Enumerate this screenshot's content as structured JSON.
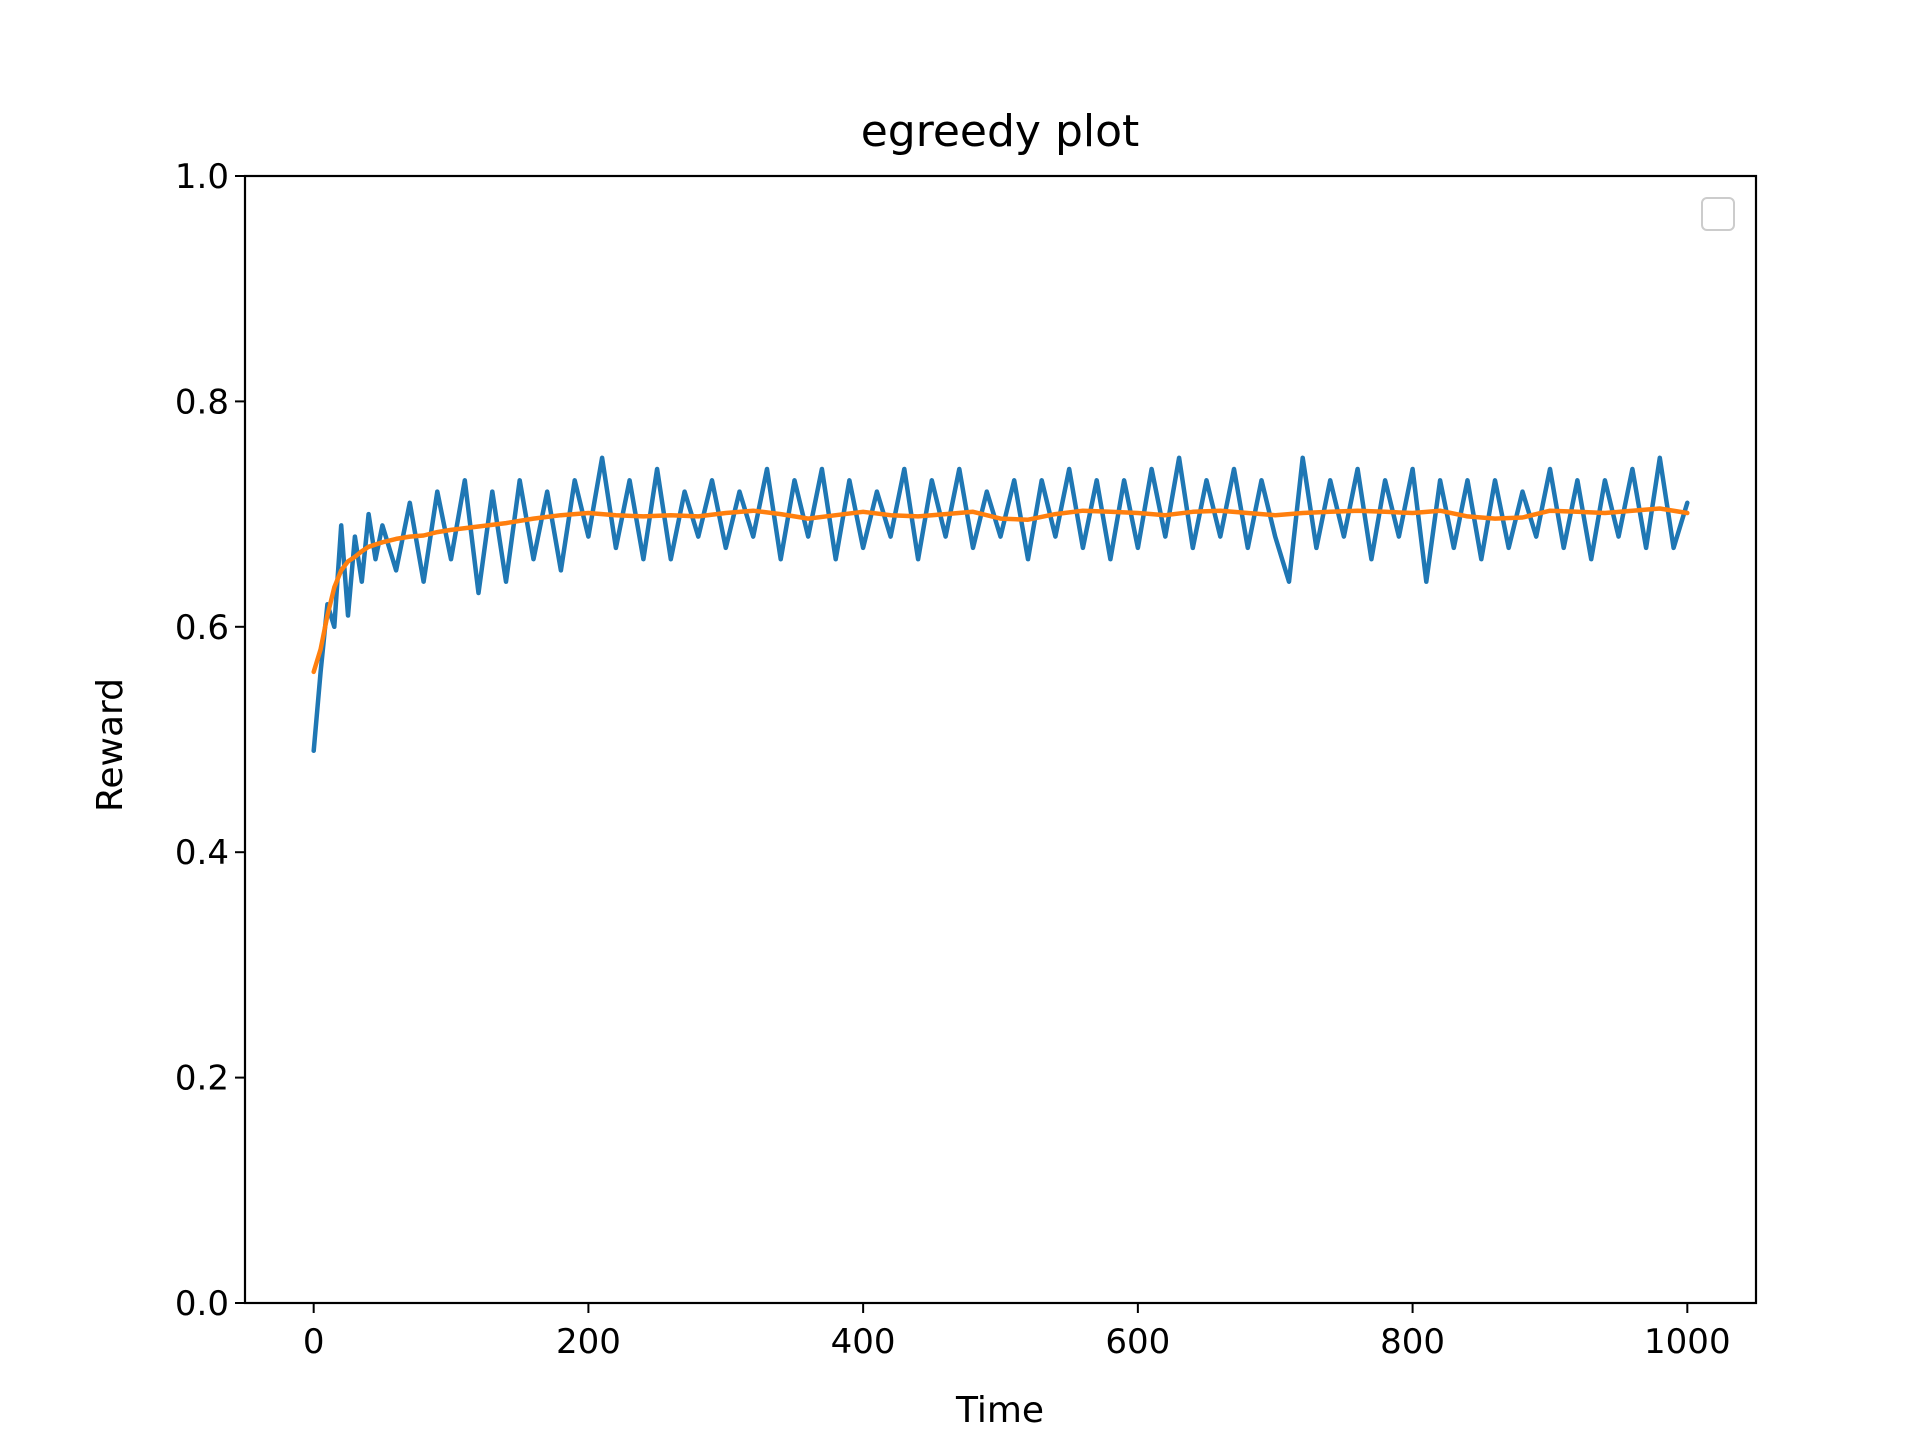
{
  "chart_data": {
    "type": "line",
    "title": "egreedy plot",
    "xlabel": "Time",
    "ylabel": "Reward",
    "xlim": [
      -50,
      1050
    ],
    "ylim": [
      0.0,
      1.0
    ],
    "xticks": [
      0,
      200,
      400,
      600,
      800,
      1000
    ],
    "xtick_labels": [
      "0",
      "200",
      "400",
      "600",
      "800",
      "1000"
    ],
    "yticks": [
      0.0,
      0.2,
      0.4,
      0.6,
      0.8,
      1.0
    ],
    "ytick_labels": [
      "0.0",
      "0.2",
      "0.4",
      "0.6",
      "0.8",
      "1.0"
    ],
    "grid": false,
    "legend": {
      "placement": "top-right",
      "entries": []
    },
    "colors": {
      "series_1": "#1f77b4",
      "series_2": "#ff7f0e"
    },
    "series": [
      {
        "color": "#1f77b4",
        "x": [
          0,
          5,
          10,
          15,
          20,
          25,
          30,
          35,
          40,
          45,
          50,
          60,
          70,
          80,
          90,
          100,
          110,
          120,
          130,
          140,
          150,
          160,
          170,
          180,
          190,
          200,
          210,
          220,
          230,
          240,
          250,
          260,
          270,
          280,
          290,
          300,
          310,
          320,
          330,
          340,
          350,
          360,
          370,
          380,
          390,
          400,
          410,
          420,
          430,
          440,
          450,
          460,
          470,
          480,
          490,
          500,
          510,
          520,
          530,
          540,
          550,
          560,
          570,
          580,
          590,
          600,
          610,
          620,
          630,
          640,
          650,
          660,
          670,
          680,
          690,
          700,
          710,
          720,
          730,
          740,
          750,
          760,
          770,
          780,
          790,
          800,
          810,
          820,
          830,
          840,
          850,
          860,
          870,
          880,
          890,
          900,
          910,
          920,
          930,
          940,
          950,
          960,
          970,
          980,
          990,
          1000
        ],
        "y": [
          0.49,
          0.56,
          0.62,
          0.6,
          0.69,
          0.61,
          0.68,
          0.64,
          0.7,
          0.66,
          0.69,
          0.65,
          0.71,
          0.64,
          0.72,
          0.66,
          0.73,
          0.63,
          0.72,
          0.64,
          0.73,
          0.66,
          0.72,
          0.65,
          0.73,
          0.68,
          0.75,
          0.67,
          0.73,
          0.66,
          0.74,
          0.66,
          0.72,
          0.68,
          0.73,
          0.67,
          0.72,
          0.68,
          0.74,
          0.66,
          0.73,
          0.68,
          0.74,
          0.66,
          0.73,
          0.67,
          0.72,
          0.68,
          0.74,
          0.66,
          0.73,
          0.68,
          0.74,
          0.67,
          0.72,
          0.68,
          0.73,
          0.66,
          0.73,
          0.68,
          0.74,
          0.67,
          0.73,
          0.66,
          0.73,
          0.67,
          0.74,
          0.68,
          0.75,
          0.67,
          0.73,
          0.68,
          0.74,
          0.67,
          0.73,
          0.68,
          0.64,
          0.75,
          0.67,
          0.73,
          0.68,
          0.74,
          0.66,
          0.73,
          0.68,
          0.74,
          0.64,
          0.73,
          0.67,
          0.73,
          0.66,
          0.73,
          0.67,
          0.72,
          0.68,
          0.74,
          0.67,
          0.73,
          0.66,
          0.73,
          0.68,
          0.74,
          0.67,
          0.75,
          0.67,
          0.71
        ]
      },
      {
        "color": "#ff7f0e",
        "x": [
          0,
          5,
          10,
          15,
          20,
          25,
          30,
          35,
          40,
          50,
          60,
          70,
          80,
          90,
          100,
          120,
          140,
          160,
          180,
          200,
          220,
          240,
          260,
          280,
          300,
          320,
          340,
          360,
          380,
          400,
          420,
          440,
          460,
          480,
          500,
          520,
          540,
          560,
          580,
          600,
          620,
          640,
          660,
          680,
          700,
          720,
          740,
          760,
          780,
          800,
          820,
          840,
          860,
          880,
          900,
          920,
          940,
          960,
          980,
          1000
        ],
        "y": [
          0.56,
          0.58,
          0.61,
          0.635,
          0.65,
          0.658,
          0.662,
          0.667,
          0.671,
          0.675,
          0.678,
          0.68,
          0.681,
          0.684,
          0.686,
          0.689,
          0.692,
          0.696,
          0.699,
          0.701,
          0.699,
          0.698,
          0.699,
          0.698,
          0.701,
          0.703,
          0.7,
          0.696,
          0.699,
          0.702,
          0.699,
          0.698,
          0.7,
          0.702,
          0.696,
          0.695,
          0.7,
          0.703,
          0.702,
          0.701,
          0.699,
          0.702,
          0.703,
          0.701,
          0.699,
          0.701,
          0.702,
          0.703,
          0.702,
          0.701,
          0.703,
          0.698,
          0.696,
          0.697,
          0.703,
          0.702,
          0.701,
          0.703,
          0.705,
          0.701
        ]
      }
    ]
  }
}
